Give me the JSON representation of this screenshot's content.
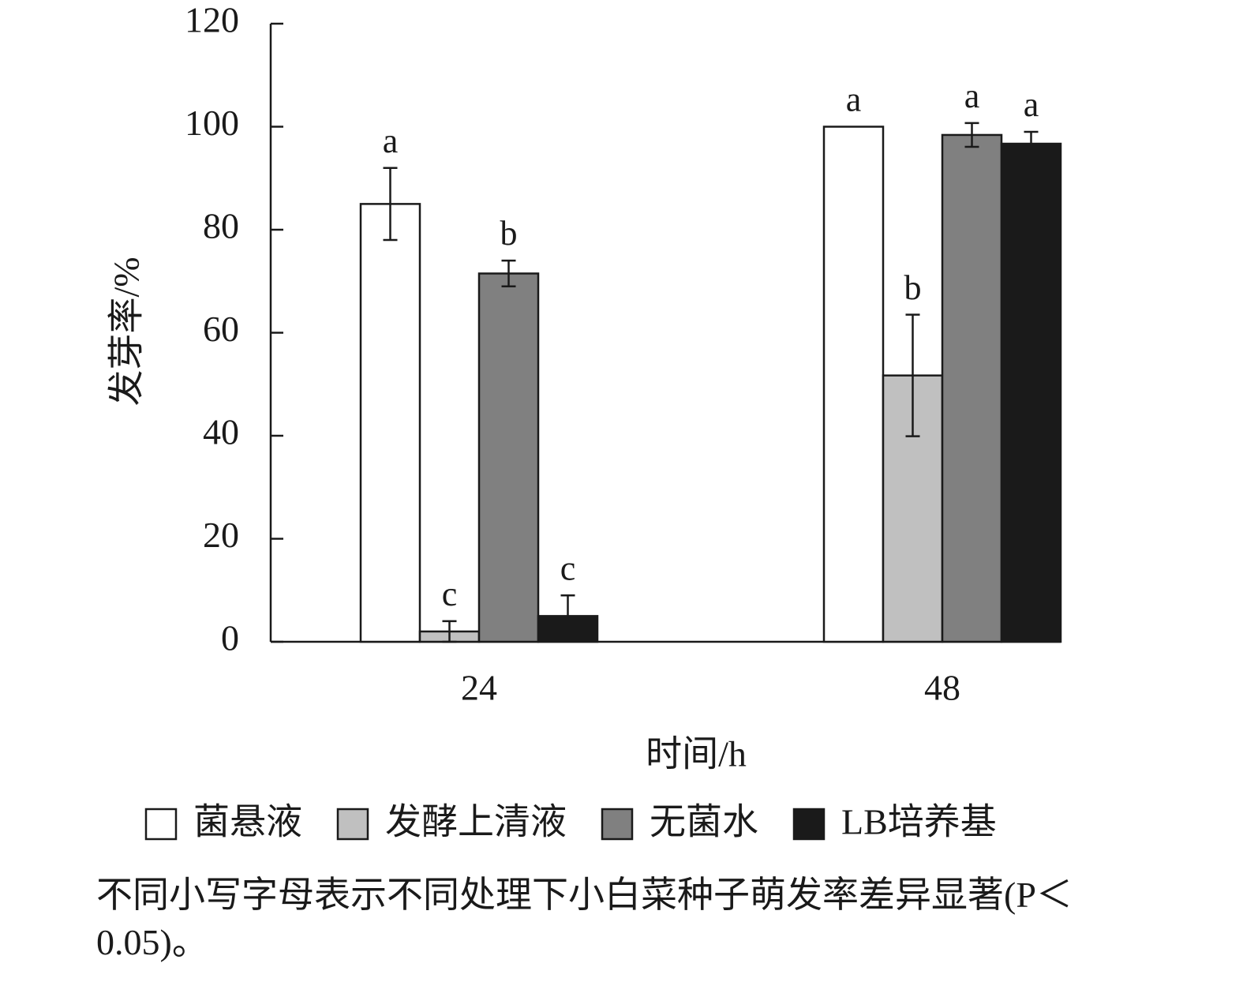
{
  "chart_data": {
    "type": "bar",
    "categories": [
      "24",
      "48"
    ],
    "series": [
      {
        "name": "菌悬液",
        "color": "#ffffff",
        "values": [
          85,
          100
        ],
        "errors": [
          7,
          null
        ],
        "labels": [
          "a",
          "a"
        ]
      },
      {
        "name": "发酵上清液",
        "color": "#c0c0c0",
        "values": [
          2,
          51.7
        ],
        "errors": [
          2,
          11.8
        ],
        "labels": [
          "c",
          "b"
        ]
      },
      {
        "name": "无菌水",
        "color": "#808080",
        "values": [
          71.5,
          98.4
        ],
        "errors": [
          2.5,
          2.3
        ],
        "labels": [
          "b",
          "a"
        ]
      },
      {
        "name": "LB培养基",
        "color": "#1a1a1a",
        "values": [
          5,
          96.7
        ],
        "errors": [
          4,
          2.3
        ],
        "labels": [
          "c",
          "a"
        ]
      }
    ],
    "ylim": [
      0,
      120
    ],
    "yticks": [
      0,
      20,
      40,
      60,
      80,
      100,
      120
    ],
    "x_label": "时间/h",
    "y_label": "发芽率/%",
    "note": "不同小写字母表示不同处理下小白菜种子萌发率差异显著(P＜0.05)。"
  }
}
